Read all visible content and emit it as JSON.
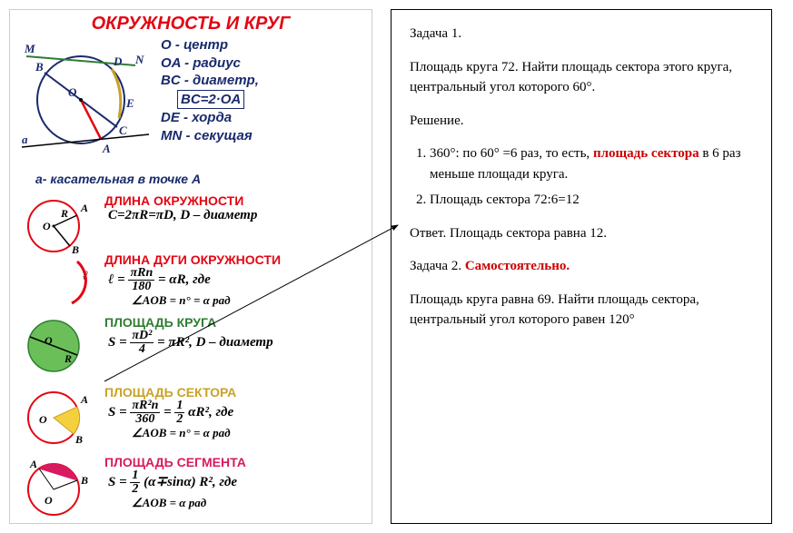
{
  "poster": {
    "title": "ОКРУЖНОСТЬ И КРУГ",
    "defs": {
      "l1": "O  - центр",
      "l2": "OA - радиус",
      "l3": "BC - диаметр,",
      "l4": "BC=2·OA",
      "l5": "DE  - хорда",
      "l6": "MN - секущая",
      "tangent": "a- касательная в точке A"
    },
    "top_diagram": {
      "labels": {
        "M": "M",
        "N": "N",
        "B": "B",
        "D": "D",
        "O": "O",
        "E": "E",
        "C": "C",
        "A": "A",
        "a": "a"
      },
      "colors": {
        "circle": "#1a2a6c",
        "radius": "#e30613",
        "diameter": "#1a2a6c",
        "chord": "#c9a227",
        "secant": "#2e7d32",
        "tangent": "#000"
      }
    },
    "sections": [
      {
        "title": "ДЛИНА ОКРУЖНОСТИ",
        "title_color": "t-red",
        "body": "C=2πR=πD,  D – диаметр",
        "sub": "",
        "diagram": "circumference"
      },
      {
        "title": "ДЛИНА ДУГИ ОКРУЖНОСТИ",
        "title_color": "t-red",
        "body_html": "ℓ = <span class='frac'><span class='num'>πRn</span><span class='den'>180</span></span> = αR,  где",
        "sub": "∠AOB = n° = α рад",
        "diagram": "arc"
      },
      {
        "title": "ПЛОЩАДЬ КРУГА",
        "title_color": "t-green",
        "body_html": "S = <span class='frac'><span class='num'>πD²</span><span class='den'>4</span></span> = πR², D – диаметр",
        "sub": "",
        "diagram": "disk"
      },
      {
        "title": "ПЛОЩАДЬ СЕКТОРА",
        "title_color": "t-gold",
        "body_html": "S = <span class='frac'><span class='num'>πR²n</span><span class='den'>360</span></span> = <span class='frac'><span class='num'>1</span><span class='den'>2</span></span> αR²,  где",
        "sub": "∠AOB = n° = α рад",
        "diagram": "sector"
      },
      {
        "title": "ПЛОЩАДЬ СЕГМЕНТА",
        "title_color": "t-pink",
        "body_html": "S = <span class='frac'><span class='num'>1</span><span class='den'>2</span></span> (α∓sinα) R²,  где",
        "sub": "∠AOB = α рад",
        "diagram": "segment"
      }
    ]
  },
  "problem": {
    "t1": "Задача 1.",
    "t2": "Площадь круга 72. Найти площадь сектора этого круга, центральный угол которого 60°.",
    "t3": "Решение.",
    "li1a": "360°: по 60° =6 раз, то есть, ",
    "li1b": "площадь сектора",
    "li1c": " в 6 раз меньше площади круга.",
    "li2": "Площадь сектора   72:6=12",
    "t4": "Ответ. Площадь сектора равна 12.",
    "t5a": "Задача 2. ",
    "t5b": "Самостоятельно.",
    "t6": "Площадь круга равна 69. Найти площадь сектора, центральный угол которого равен 120°"
  },
  "style": {
    "arrow_color": "#000"
  }
}
